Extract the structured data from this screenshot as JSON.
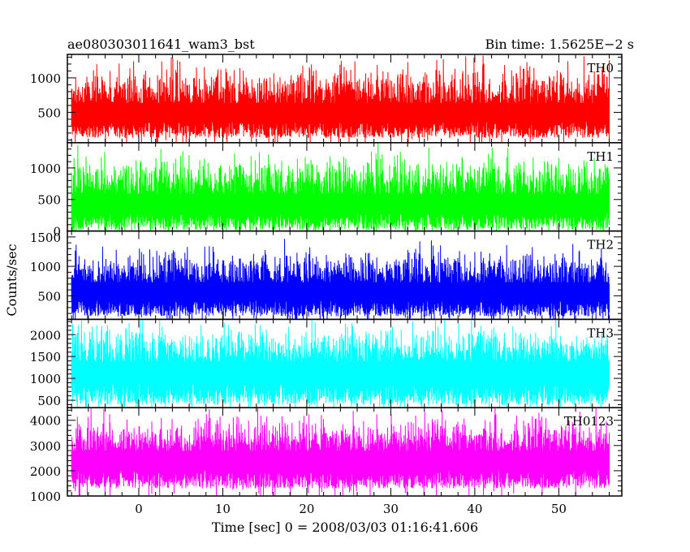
{
  "header": {
    "title": "ae080303011641_wam3_bst",
    "bin_time": "Bin time: 1.5625E−2 s"
  },
  "chart_data": {
    "type": "line",
    "xlabel": "Time [sec] 0 = 2008/03/03 01:16:41.606",
    "ylabel": "Counts/sec",
    "xlim": [
      -8.5,
      57.5
    ],
    "x_range": [
      -8.0,
      56.0
    ],
    "x_ticks": [
      0,
      10,
      20,
      30,
      40,
      50
    ],
    "panels": [
      {
        "name": "TH0",
        "color": "#ff0000",
        "ylim": [
          60,
          1340
        ],
        "y_ticks": [
          500,
          1000
        ],
        "baseline": 130,
        "mean": 560,
        "noise": 220,
        "max": 1340
      },
      {
        "name": "TH1",
        "color": "#00ff00",
        "ylim": [
          0,
          1400
        ],
        "y_ticks": [
          0,
          500,
          1000
        ],
        "baseline": 20,
        "mean": 510,
        "noise": 240,
        "max": 1400
      },
      {
        "name": "TH2",
        "color": "#0000ff",
        "ylim": [
          100,
          1600
        ],
        "y_ticks": [
          500,
          1000,
          1500
        ],
        "baseline": 150,
        "mean": 650,
        "noise": 230,
        "max": 1600
      },
      {
        "name": "TH3",
        "color": "#00ffff",
        "ylim": [
          330,
          2350
        ],
        "y_ticks": [
          500,
          1000,
          1500,
          2000
        ],
        "baseline": 390,
        "mean": 1280,
        "noise": 330,
        "max": 2350
      },
      {
        "name": "TH0123",
        "color": "#ff00ff",
        "ylim": [
          1000,
          4500
        ],
        "y_ticks": [
          1000,
          2000,
          3000,
          4000
        ],
        "baseline": 1300,
        "mean": 2600,
        "noise": 560,
        "max": 4500
      }
    ]
  }
}
